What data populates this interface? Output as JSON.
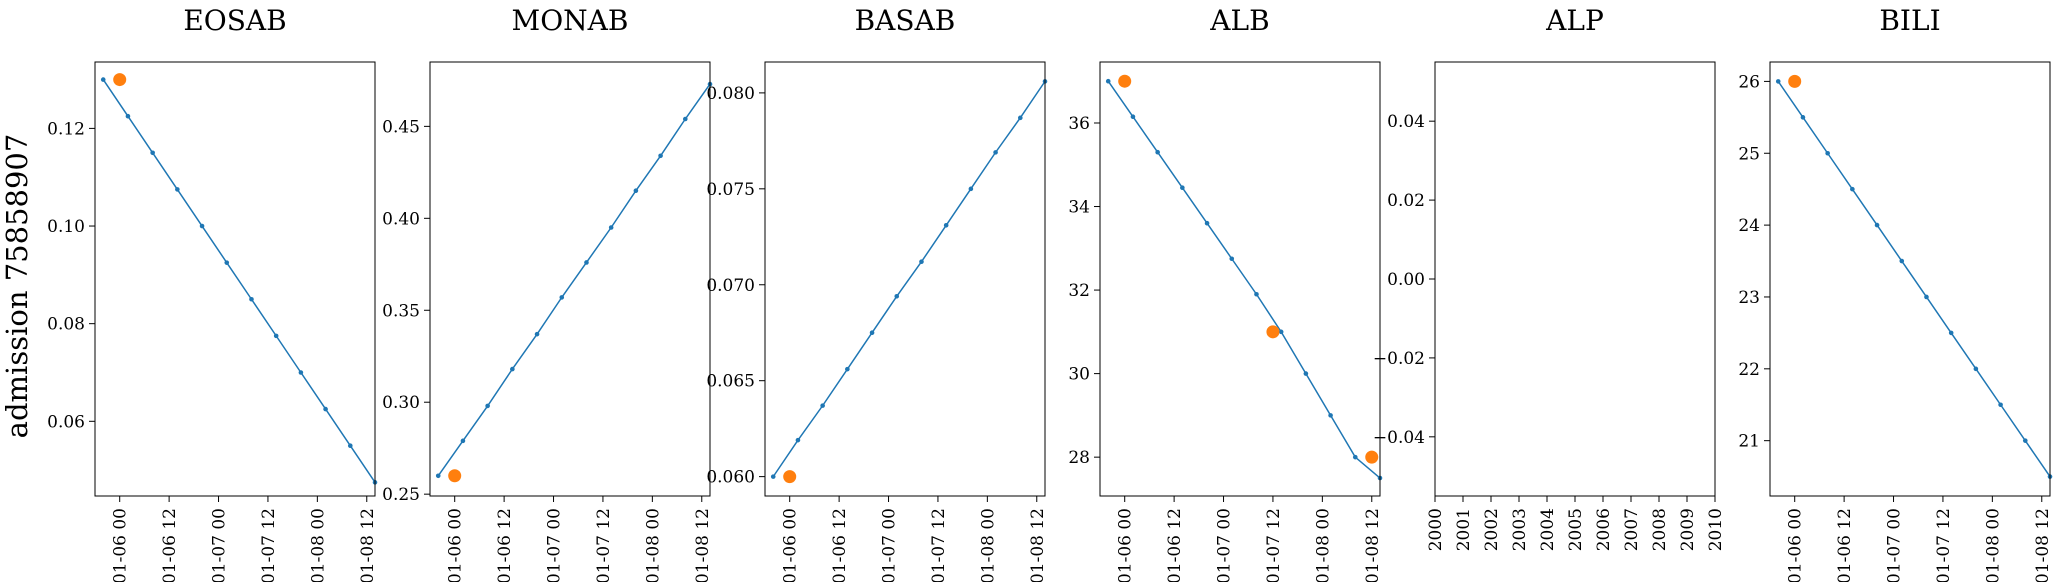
{
  "figure": {
    "row_label": "admission 75858907"
  },
  "colors": {
    "line": "#1f77b4",
    "observed": "#ff7f0e",
    "axis": "#000000"
  },
  "x_ticks_date": [
    "01-06 00",
    "01-06 12",
    "01-07 00",
    "01-07 12",
    "01-08 00",
    "01-08 12"
  ],
  "chart_data": [
    {
      "type": "line",
      "title": "EOSAB",
      "x_type": "date",
      "xlim": [
        "01-05 18",
        "01-08 14"
      ],
      "ylim": [
        0.0447,
        0.1336
      ],
      "y_ticks": [
        0.06,
        0.08,
        0.1,
        0.12
      ],
      "y_tick_labels": [
        "0.06",
        "0.08",
        "0.10",
        "0.12"
      ],
      "x": [
        "01-05 20",
        "01-06 02",
        "01-06 08",
        "01-06 14",
        "01-06 20",
        "01-07 02",
        "01-07 08",
        "01-07 14",
        "01-07 20",
        "01-08 02",
        "01-08 08",
        "01-08 14"
      ],
      "series": [
        {
          "values": [
            0.13,
            0.1225,
            0.115,
            0.1075,
            0.1,
            0.0925,
            0.085,
            0.0775,
            0.07,
            0.0625,
            0.055,
            0.0475
          ]
        },
        {
          "kind": "observed",
          "x": [
            "01-06 00"
          ],
          "values": [
            0.13
          ]
        }
      ]
    },
    {
      "type": "line",
      "title": "MONAB",
      "x_type": "date",
      "xlim": [
        "01-05 18",
        "01-08 14"
      ],
      "ylim": [
        0.249,
        0.485
      ],
      "y_ticks": [
        0.25,
        0.3,
        0.35,
        0.4,
        0.45
      ],
      "y_tick_labels": [
        "0.25",
        "0.30",
        "0.35",
        "0.40",
        "0.45"
      ],
      "x": [
        "01-05 20",
        "01-06 02",
        "01-06 08",
        "01-06 14",
        "01-06 20",
        "01-07 02",
        "01-07 08",
        "01-07 14",
        "01-07 20",
        "01-08 02",
        "01-08 08",
        "01-08 14"
      ],
      "series": [
        {
          "values": [
            0.26,
            0.279,
            0.298,
            0.318,
            0.337,
            0.357,
            0.376,
            0.395,
            0.415,
            0.434,
            0.454,
            0.473
          ]
        },
        {
          "kind": "observed",
          "x": [
            "01-06 00"
          ],
          "values": [
            0.26
          ]
        }
      ]
    },
    {
      "type": "line",
      "title": "BASAB",
      "x_type": "date",
      "xlim": [
        "01-05 18",
        "01-08 14"
      ],
      "ylim": [
        0.05899,
        0.08161
      ],
      "y_ticks": [
        0.06,
        0.065,
        0.07,
        0.075,
        0.08
      ],
      "y_tick_labels": [
        "0.060",
        "0.065",
        "0.070",
        "0.075",
        "0.080"
      ],
      "x": [
        "01-05 20",
        "01-06 02",
        "01-06 08",
        "01-06 14",
        "01-06 20",
        "01-07 02",
        "01-07 08",
        "01-07 14",
        "01-07 20",
        "01-08 02",
        "01-08 08",
        "01-08 14"
      ],
      "series": [
        {
          "values": [
            0.06,
            0.0619,
            0.0637,
            0.0656,
            0.0675,
            0.0694,
            0.0712,
            0.0731,
            0.075,
            0.0769,
            0.0787,
            0.0806
          ]
        },
        {
          "kind": "observed",
          "x": [
            "01-06 00"
          ],
          "values": [
            0.06
          ]
        }
      ]
    },
    {
      "type": "line",
      "title": "ALB",
      "x_type": "date",
      "xlim": [
        "01-05 18",
        "01-08 14"
      ],
      "ylim": [
        27.07,
        37.46
      ],
      "y_ticks": [
        28,
        30,
        32,
        34,
        36
      ],
      "y_tick_labels": [
        "28",
        "30",
        "32",
        "34",
        "36"
      ],
      "x": [
        "01-05 20",
        "01-06 02",
        "01-06 08",
        "01-06 14",
        "01-06 20",
        "01-07 02",
        "01-07 08",
        "01-07 14",
        "01-07 20",
        "01-08 02",
        "01-08 08",
        "01-08 14"
      ],
      "series": [
        {
          "values": [
            37.0,
            36.15,
            35.3,
            34.45,
            33.6,
            32.75,
            31.9,
            31.0,
            30.0,
            29.0,
            28.0,
            27.5
          ]
        },
        {
          "kind": "observed",
          "x": [
            "01-06 00",
            "01-07 12",
            "01-08 12"
          ],
          "values": [
            37.0,
            31.0,
            28.0
          ]
        }
      ]
    },
    {
      "type": "line",
      "title": "ALP",
      "x_type": "year",
      "xlim": [
        2000,
        2010
      ],
      "ylim": [
        -0.055,
        0.055
      ],
      "x_ticks": [
        2000,
        2001,
        2002,
        2003,
        2004,
        2005,
        2006,
        2007,
        2008,
        2009,
        2010
      ],
      "x_tick_labels": [
        "2000",
        "2001",
        "2002",
        "2003",
        "2004",
        "2005",
        "2006",
        "2007",
        "2008",
        "2009",
        "2010"
      ],
      "y_ticks": [
        -0.04,
        -0.02,
        0.0,
        0.02,
        0.04
      ],
      "y_tick_labels": [
        "−0.04",
        "−0.02",
        "0.00",
        "0.02",
        "0.04"
      ],
      "series": []
    },
    {
      "type": "line",
      "title": "BILI",
      "x_type": "date",
      "xlim": [
        "01-05 18",
        "01-08 14"
      ],
      "ylim": [
        20.23,
        26.27
      ],
      "y_ticks": [
        21,
        22,
        23,
        24,
        25,
        26
      ],
      "y_tick_labels": [
        "21",
        "22",
        "23",
        "24",
        "25",
        "26"
      ],
      "x": [
        "01-05 20",
        "01-06 02",
        "01-06 08",
        "01-06 14",
        "01-06 20",
        "01-07 02",
        "01-07 08",
        "01-07 14",
        "01-07 20",
        "01-08 02",
        "01-08 08",
        "01-08 14"
      ],
      "series": [
        {
          "values": [
            26.0,
            25.5,
            25.0,
            24.5,
            24.0,
            23.5,
            23.0,
            22.5,
            22.0,
            21.5,
            21.0,
            20.5
          ]
        },
        {
          "kind": "observed",
          "x": [
            "01-06 00"
          ],
          "values": [
            26.0
          ]
        }
      ]
    }
  ]
}
